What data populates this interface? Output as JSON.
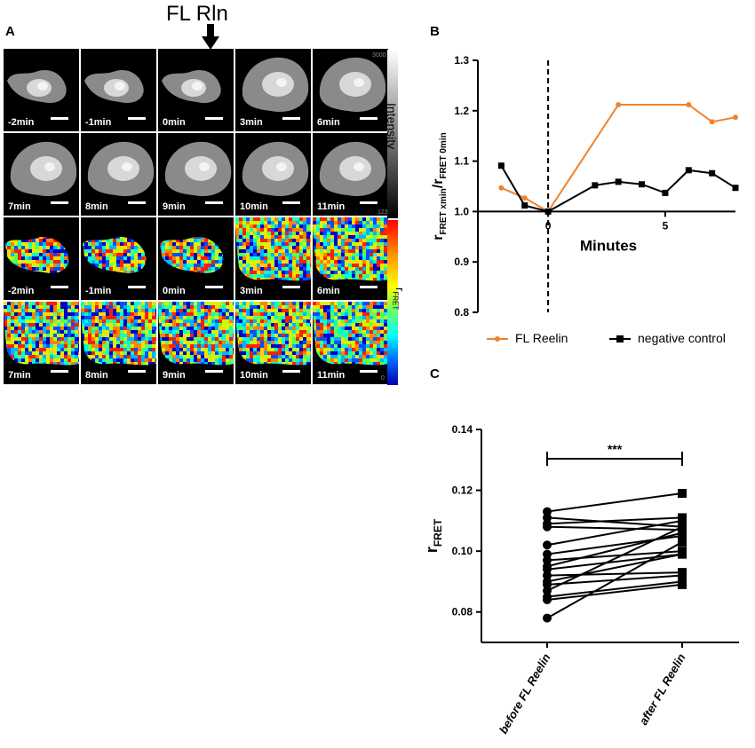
{
  "figure": {
    "panel_a": {
      "letter": "A",
      "stimulus_label": "FL Rln",
      "intensity_rows": [
        [
          "-2min",
          "-1min",
          "0min",
          "3min",
          "6min"
        ],
        [
          "7min",
          "8min",
          "9min",
          "10min",
          "11min"
        ]
      ],
      "fret_rows": [
        [
          "-2min",
          "-1min",
          "0min",
          "3min",
          "6min"
        ],
        [
          "7min",
          "8min",
          "9min",
          "10min",
          "11min"
        ]
      ],
      "intensity_colorbar": {
        "max": "3000",
        "min": "123",
        "label": "Intensity"
      },
      "fret_colorbar": {
        "max": "0.2",
        "min": "0",
        "label_main": "r",
        "label_sub": "FRET"
      }
    },
    "panel_b": {
      "letter": "B"
    },
    "panel_c": {
      "letter": "C"
    }
  },
  "chart_data": [
    {
      "type": "line",
      "ylabel_parts": {
        "r1": "r",
        "sub1": "FRET xmin",
        "slash": "/r",
        "sub2": "FRET 0min"
      },
      "xlabel": "Minutes",
      "ylim": [
        0.8,
        1.3
      ],
      "yticks": [
        "0.8",
        "0.9",
        "1.0",
        "1.1",
        "1.2",
        "1.3"
      ],
      "xlim": [
        -3,
        8
      ],
      "xticks": [
        "0",
        "5"
      ],
      "vline_x": 0,
      "series": [
        {
          "name": "FL Reelin",
          "color": "#f0822d",
          "marker": "circle",
          "points": [
            [
              -2,
              1.047
            ],
            [
              -1,
              1.027
            ],
            [
              0,
              1.0
            ],
            [
              3,
              1.212
            ],
            [
              6,
              1.212
            ],
            [
              7,
              1.178
            ],
            [
              8,
              1.187
            ]
          ]
        },
        {
          "name": "negative control",
          "color": "#000000",
          "marker": "square",
          "points": [
            [
              -2,
              1.091
            ],
            [
              -1,
              1.012
            ],
            [
              0,
              1.0
            ],
            [
              2,
              1.052
            ],
            [
              3,
              1.059
            ],
            [
              4,
              1.054
            ],
            [
              5,
              1.037
            ],
            [
              6,
              1.082
            ],
            [
              7,
              1.076
            ],
            [
              8,
              1.047
            ]
          ]
        }
      ],
      "legend_position": "bottom"
    },
    {
      "type": "scatter",
      "categories": [
        "before FL Reelin",
        "after FL Reelin"
      ],
      "ylabel_main": "r",
      "ylabel_sub": "FRET",
      "ylim": [
        0.07,
        0.14
      ],
      "yticks": [
        "0.08",
        "0.10",
        "0.12",
        "0.14"
      ],
      "significance": "***",
      "pairs": [
        [
          0.113,
          0.119
        ],
        [
          0.111,
          0.108
        ],
        [
          0.109,
          0.111
        ],
        [
          0.108,
          0.107
        ],
        [
          0.102,
          0.11
        ],
        [
          0.099,
          0.105
        ],
        [
          0.097,
          0.1
        ],
        [
          0.095,
          0.106
        ],
        [
          0.094,
          0.099
        ],
        [
          0.092,
          0.093
        ],
        [
          0.09,
          0.099
        ],
        [
          0.089,
          0.092
        ],
        [
          0.087,
          0.108
        ],
        [
          0.085,
          0.09
        ],
        [
          0.084,
          0.089
        ],
        [
          0.078,
          0.103
        ]
      ]
    }
  ]
}
